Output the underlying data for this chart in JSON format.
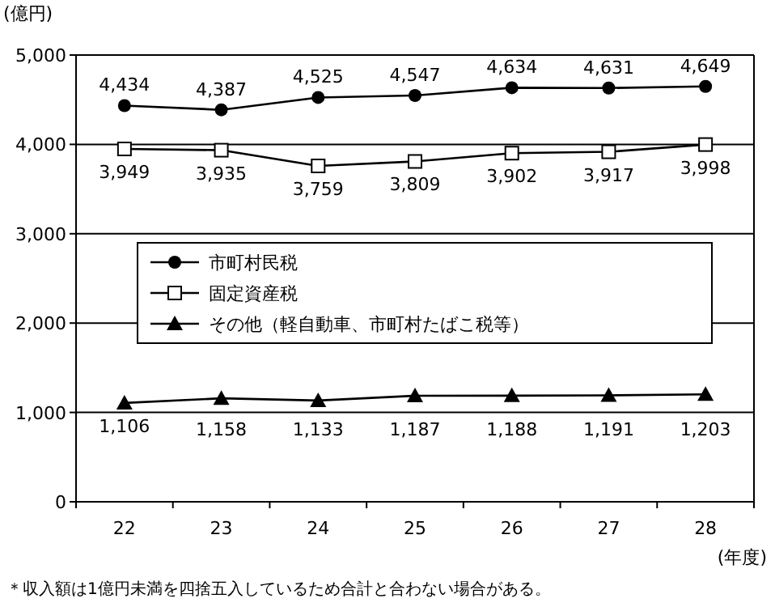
{
  "chart_data": {
    "type": "line",
    "ylabel": "(億円)",
    "xlabel": "(年度)",
    "categories": [
      "22",
      "23",
      "24",
      "25",
      "26",
      "27",
      "28"
    ],
    "series": [
      {
        "name": "市町村民税",
        "color": "#000000",
        "marker": "circle",
        "values": [
          4434,
          4387,
          4525,
          4547,
          4634,
          4631,
          4649
        ],
        "value_labels": [
          "4,434",
          "4,387",
          "4,525",
          "4,547",
          "4,634",
          "4,631",
          "4,649"
        ]
      },
      {
        "name": "固定資産税",
        "color": "#000000",
        "marker": "square",
        "values": [
          3949,
          3935,
          3759,
          3809,
          3902,
          3917,
          3998
        ],
        "value_labels": [
          "3,949",
          "3,935",
          "3,759",
          "3,809",
          "3,902",
          "3,917",
          "3,998"
        ]
      },
      {
        "name": "その他（軽自動車、市町村たばこ税等）",
        "color": "#000000",
        "marker": "triangle",
        "values": [
          1106,
          1158,
          1133,
          1187,
          1188,
          1191,
          1203
        ],
        "value_labels": [
          "1,106",
          "1,158",
          "1,133",
          "1,187",
          "1,188",
          "1,191",
          "1,203"
        ]
      }
    ],
    "ylim": [
      0,
      5000
    ],
    "yticks": [
      0,
      {
        "value": 1000,
        "label": "1,000"
      },
      {
        "value": 2000,
        "label": "2,000"
      },
      {
        "value": 3000,
        "label": "3,000"
      },
      {
        "value": 4000,
        "label": "4,000"
      },
      {
        "value": 5000,
        "label": "5,000"
      }
    ],
    "grid": "y",
    "legend": "center",
    "annotations": [
      "＊収入額は1億円未満を四捨五入しているため合計と合わない場合がある。"
    ]
  }
}
